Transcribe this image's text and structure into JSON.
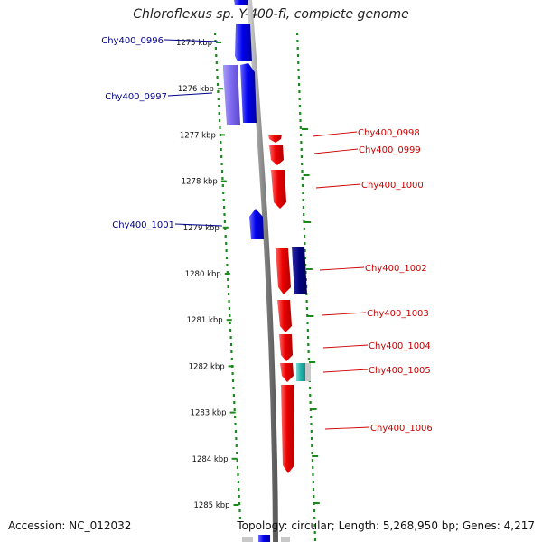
{
  "title": "Chloroflexus sp. Y-400-fl, complete genome",
  "accession_text": "Accession: NC_012032",
  "info_text": "Topology: circular; Length: 5,268,950 bp; Genes: 4,217",
  "colors": {
    "left_gene_label": "#00008b",
    "right_gene_label": "#cc0000",
    "forward_gene": "#ee0000",
    "reverse_gene": "#0000ee",
    "reverse_gene_light": "#7b68ee",
    "dark_gene": "#000080",
    "teal_gene": "#20b2aa",
    "ruler_dots": "#1a8a1a",
    "backbone": "#888888"
  },
  "scale": {
    "ticks": [
      "1275 kbp",
      "1276 kbp",
      "1277 kbp",
      "1278 kbp",
      "1279 kbp",
      "1280 kbp",
      "1281 kbp",
      "1282 kbp",
      "1283 kbp",
      "1284 kbp",
      "1285 kbp"
    ]
  },
  "genes_left": [
    {
      "label": "Chy400_0996",
      "tick_index": 0
    },
    {
      "label": "Chy400_0997",
      "tick_index": 1
    },
    {
      "label": "Chy400_1001",
      "tick_index": 4
    }
  ],
  "genes_right": [
    {
      "label": "Chy400_0998"
    },
    {
      "label": "Chy400_0999"
    },
    {
      "label": "Chy400_1000"
    },
    {
      "label": "Chy400_1002"
    },
    {
      "label": "Chy400_1003"
    },
    {
      "label": "Chy400_1004"
    },
    {
      "label": "Chy400_1005"
    },
    {
      "label": "Chy400_1006"
    }
  ]
}
